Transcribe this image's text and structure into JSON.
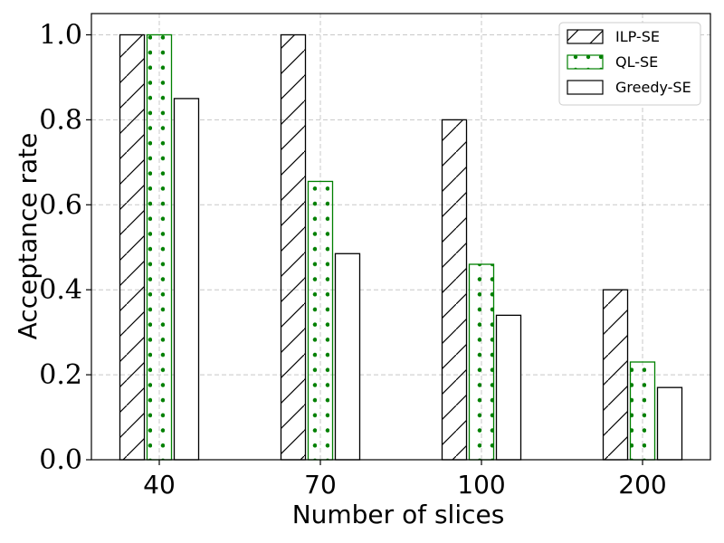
{
  "chart_data": {
    "type": "bar",
    "title": "",
    "xlabel": "Number of slices",
    "ylabel": "Acceptance rate",
    "categories": [
      "40",
      "70",
      "100",
      "200"
    ],
    "ylim": [
      0,
      1.05
    ],
    "yticks": [
      "0.0",
      "0.2",
      "0.4",
      "0.6",
      "0.8",
      "1.0"
    ],
    "grid": true,
    "legend_position": "top-right",
    "series": [
      {
        "name": "ILP-SE",
        "values": [
          1.0,
          1.0,
          0.8,
          0.4
        ],
        "color": "#000000",
        "pattern": "diagonal-hatch"
      },
      {
        "name": "QL-SE",
        "values": [
          1.0,
          0.655,
          0.46,
          0.23
        ],
        "color": "#008000",
        "pattern": "dots"
      },
      {
        "name": "Greedy-SE",
        "values": [
          0.85,
          0.485,
          0.34,
          0.17
        ],
        "color": "#000000",
        "pattern": "none"
      }
    ]
  }
}
